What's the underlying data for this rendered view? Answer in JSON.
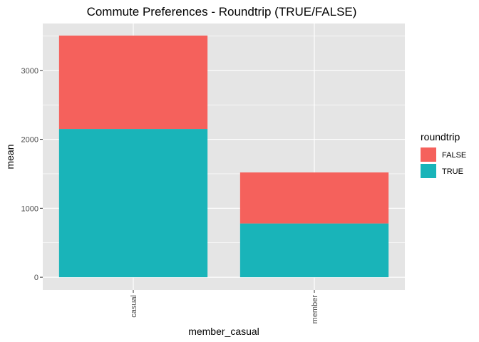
{
  "chart_data": {
    "type": "bar",
    "stacked": true,
    "title": "Commute Preferences - Roundtrip (TRUE/FALSE)",
    "xlabel": "member_casual",
    "ylabel": "mean",
    "categories": [
      "casual",
      "member"
    ],
    "series": [
      {
        "name": "TRUE",
        "values": [
          2150,
          780
        ],
        "color": "#19b4b9"
      },
      {
        "name": "FALSE",
        "values": [
          1355,
          740
        ],
        "color": "#f5615c"
      }
    ],
    "ylim": [
      -185,
      3680
    ],
    "yticks": [
      0,
      1000,
      2000,
      3000
    ],
    "grid": true,
    "legend": {
      "title": "roundtrip",
      "position": "right",
      "entries": [
        {
          "label": "FALSE",
          "color": "#f5615c"
        },
        {
          "label": "TRUE",
          "color": "#19b4b9"
        }
      ]
    },
    "colors": {
      "panel_background": "#e5e5e5",
      "gridline": "#ffffff"
    }
  }
}
